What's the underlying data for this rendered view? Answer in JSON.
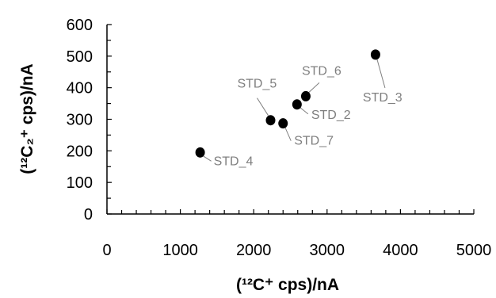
{
  "chart_data": {
    "type": "scatter",
    "xlabel": "(¹²C⁺ cps)/nA",
    "ylabel": "(¹²C₂⁺ cps)/nA",
    "xlim": [
      0,
      5000
    ],
    "ylim": [
      0,
      600
    ],
    "x_ticks": [
      0,
      1000,
      2000,
      3000,
      4000,
      5000
    ],
    "y_ticks": [
      0,
      100,
      200,
      300,
      400,
      500,
      600
    ],
    "grid": false,
    "marker_color": "#000000",
    "label_color": "#7f7f7f",
    "points": [
      {
        "label": "STD_4",
        "x": 1270,
        "y": 195
      },
      {
        "label": "STD_5",
        "x": 2230,
        "y": 297
      },
      {
        "label": "STD_7",
        "x": 2400,
        "y": 287
      },
      {
        "label": "STD_2",
        "x": 2590,
        "y": 347
      },
      {
        "label": "STD_6",
        "x": 2710,
        "y": 373
      },
      {
        "label": "STD_3",
        "x": 3660,
        "y": 505
      }
    ]
  }
}
